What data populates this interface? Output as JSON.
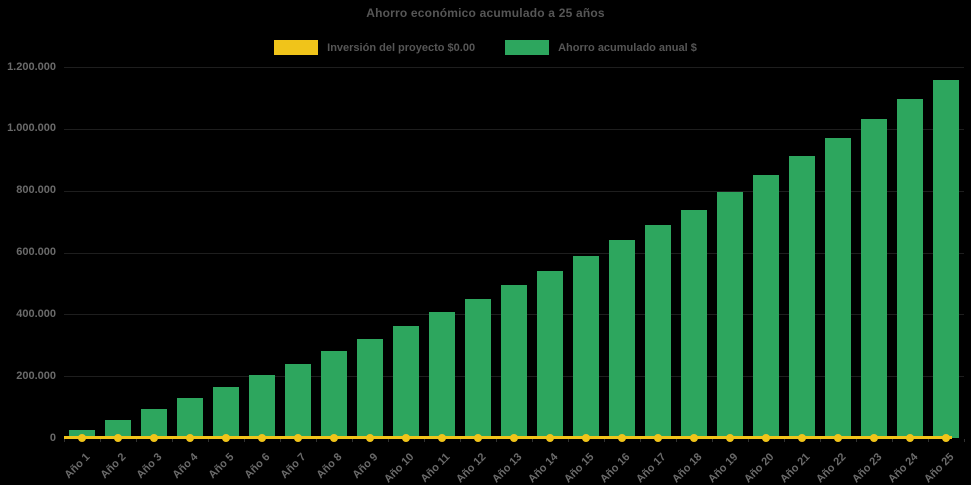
{
  "title": "Ahorro económico acumulado a 25 años",
  "colors": {
    "background": "#000000",
    "title_text": "#565656",
    "axis_text": "#6a6a6a",
    "gridline": "#1e1e1e",
    "investment_yellow": "#f0c41a",
    "savings_green": "#2da65e"
  },
  "legend": {
    "position": "top",
    "items": [
      {
        "label": "Inversión del proyecto $0.00",
        "color": "#f0c41a",
        "series_type": "line"
      },
      {
        "label": "Ahorro acumulado anual $",
        "color": "#2da65e",
        "series_type": "bar"
      }
    ]
  },
  "chart_data": {
    "type": "bar",
    "title": "Ahorro económico acumulado a 25 años",
    "categories": [
      "Año 1",
      "Año 2",
      "Año 3",
      "Año 4",
      "Año 5",
      "Año 6",
      "Año 7",
      "Año 8",
      "Año 9",
      "Año 10",
      "Año 11",
      "Año 12",
      "Año 13",
      "Año 14",
      "Año 15",
      "Año 16",
      "Año 17",
      "Año 18",
      "Año 19",
      "Año 20",
      "Año 21",
      "Año 22",
      "Año 23",
      "Año 24",
      "Año 25"
    ],
    "series": [
      {
        "name": "Inversión del proyecto $0.00",
        "type": "line",
        "color": "#f0c41a",
        "marker": "circle",
        "values": [
          0,
          0,
          0,
          0,
          0,
          0,
          0,
          0,
          0,
          0,
          0,
          0,
          0,
          0,
          0,
          0,
          0,
          0,
          0,
          0,
          0,
          0,
          0,
          0,
          0
        ]
      },
      {
        "name": "Ahorro acumulado anual $",
        "type": "bar",
        "color": "#2da65e",
        "values": [
          26000,
          59000,
          93000,
          128000,
          164000,
          204000,
          240000,
          281000,
          319000,
          362000,
          406000,
          448000,
          494000,
          540000,
          589000,
          641000,
          690000,
          739000,
          795000,
          852000,
          911000,
          971000,
          1033000,
          1095000,
          1158000
        ]
      }
    ],
    "xlabel": "",
    "ylabel": "",
    "ylim": [
      0,
      1200000
    ],
    "yticks": [
      0,
      200000,
      400000,
      600000,
      800000,
      1000000,
      1200000
    ],
    "ytick_labels": [
      "0",
      "200.000",
      "400.000",
      "600.000",
      "800.000",
      "1.000.000",
      "1.200.000"
    ],
    "grid": "horizontal-faint",
    "legend_position": "top",
    "x_label_rotation": -45
  }
}
